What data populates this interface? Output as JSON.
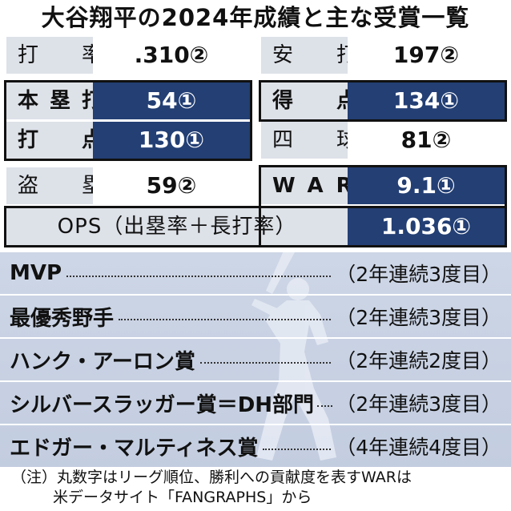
{
  "title": "大谷翔平の2024年成績と主な受賞一覧",
  "stats": {
    "batting_avg_label": "打　率",
    "batting_avg_value": ".310②",
    "hits_label": "安　打",
    "hits_value": "197②",
    "hr_label": "本塁打",
    "hr_value": "54①",
    "runs_label": "得　点",
    "runs_value": "134①",
    "rbi_label": "打　点",
    "rbi_value": "130①",
    "walks_label": "四　球",
    "walks_value": "81②",
    "sb_label": "盗　塁",
    "sb_value": "59②",
    "war_label": "WAR",
    "war_value": "9.1①",
    "ops_label": "OPS（出塁率＋長打率）",
    "ops_value": "1.036①"
  },
  "awards": [
    {
      "name": "MVP",
      "record": "（2年連続3度目）"
    },
    {
      "name": "最優秀野手",
      "record": "（2年連続3度目）"
    },
    {
      "name": "ハンク・アーロン賞",
      "record": "（2年連続2度目）"
    },
    {
      "name": "シルバースラッガー賞＝DH部門",
      "record": "（2年連続3度目）"
    },
    {
      "name": "エドガー・マルティネス賞",
      "record": "（4年連続4度目）"
    }
  ],
  "note": {
    "line1": "（注）丸数字はリーグ順位、勝利への貢献度を表すWARは",
    "line2": "米データサイト「FANGRAPHS」から"
  },
  "colors": {
    "highlight_blue": "#233f74",
    "label_gray": "#dde1e8",
    "award_bg": "#c8d1e3"
  }
}
